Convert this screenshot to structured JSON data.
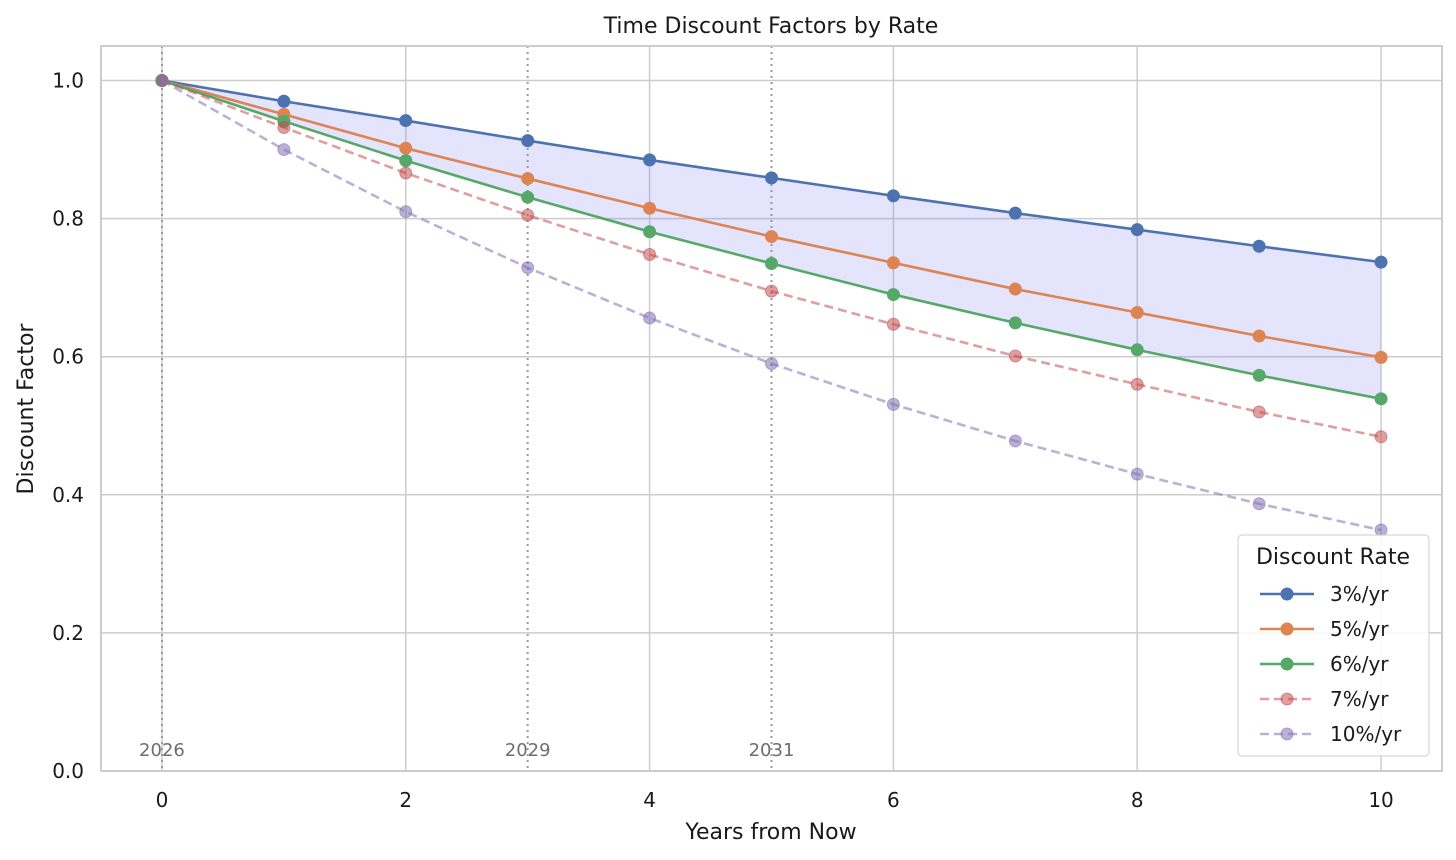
{
  "chart_data": {
    "type": "line",
    "title": "Time Discount Factors by Rate",
    "xlabel": "Years from Now",
    "ylabel": "Discount Factor",
    "xlim": [
      -0.5,
      10.5
    ],
    "ylim": [
      0.0,
      1.05
    ],
    "xticks": [
      0,
      2,
      4,
      6,
      8,
      10
    ],
    "xtick_labels": [
      "0",
      "2",
      "4",
      "6",
      "8",
      "10"
    ],
    "yticks": [
      0.0,
      0.2,
      0.4,
      0.6,
      0.8,
      1.0
    ],
    "ytick_labels": [
      "0.0",
      "0.2",
      "0.4",
      "0.6",
      "0.8",
      "1.0"
    ],
    "grid": true,
    "x": [
      0,
      1,
      2,
      3,
      4,
      5,
      6,
      7,
      8,
      9,
      10
    ],
    "series": [
      {
        "name": "3%/yr",
        "color": "#4C72B0",
        "dashed": false,
        "alpha": 1.0,
        "values": [
          1.0,
          0.97,
          0.942,
          0.913,
          0.885,
          0.859,
          0.833,
          0.808,
          0.784,
          0.76,
          0.737
        ]
      },
      {
        "name": "5%/yr",
        "color": "#DD8452",
        "dashed": false,
        "alpha": 1.0,
        "values": [
          1.0,
          0.951,
          0.902,
          0.858,
          0.815,
          0.774,
          0.736,
          0.698,
          0.664,
          0.63,
          0.599
        ]
      },
      {
        "name": "6%/yr",
        "color": "#55A868",
        "dashed": false,
        "alpha": 1.0,
        "values": [
          1.0,
          0.941,
          0.884,
          0.831,
          0.781,
          0.735,
          0.69,
          0.649,
          0.61,
          0.573,
          0.539
        ]
      },
      {
        "name": "7%/yr",
        "color": "#C44E52",
        "dashed": true,
        "alpha": 0.55,
        "values": [
          1.0,
          0.932,
          0.866,
          0.805,
          0.748,
          0.695,
          0.647,
          0.601,
          0.56,
          0.52,
          0.484
        ]
      },
      {
        "name": "10%/yr",
        "color": "#8172B3",
        "dashed": true,
        "alpha": 0.55,
        "values": [
          1.0,
          0.9,
          0.81,
          0.729,
          0.656,
          0.59,
          0.531,
          0.478,
          0.43,
          0.387,
          0.349
        ]
      }
    ],
    "fill_between": {
      "upper": "3%/yr",
      "lower": "6%/yr",
      "color": "#7878F0",
      "alpha": 0.2
    },
    "vlines": [
      {
        "x": 0,
        "label": "2026"
      },
      {
        "x": 3,
        "label": "2029"
      },
      {
        "x": 5,
        "label": "2031"
      }
    ],
    "legend": {
      "title": "Discount Rate",
      "placement": "lower-right"
    }
  }
}
